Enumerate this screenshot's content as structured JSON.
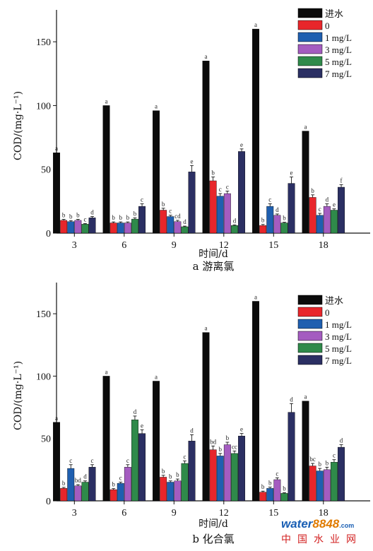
{
  "colors": {
    "进水": "#0b0b0b",
    "0": "#e8262b",
    "1 mg/L": "#1f5fb0",
    "3 mg/L": "#a45cc0",
    "5 mg/L": "#2f8a4a",
    "7 mg/L": "#2b2f63"
  },
  "chart_data": [
    {
      "type": "bar",
      "title": "a 游离氯",
      "xlabel": "时间/d",
      "ylabel": "COD/(mg·L⁻¹)",
      "ylim": [
        0,
        175
      ],
      "yticks": [
        0,
        50,
        100,
        150
      ],
      "categories": [
        "3",
        "6",
        "9",
        "12",
        "15",
        "18"
      ],
      "legend_position": "top-right",
      "grid": false,
      "series": [
        {
          "name": "进水",
          "values": [
            63,
            100,
            96,
            135,
            160,
            80
          ],
          "errors": [
            0,
            0,
            0,
            0,
            0,
            0
          ],
          "letters": [
            "a",
            "a",
            "a",
            "a",
            "a",
            "a"
          ]
        },
        {
          "name": "0",
          "values": [
            10,
            8,
            18,
            41,
            6,
            28
          ],
          "errors": [
            0.8,
            0.8,
            1.5,
            3,
            0.8,
            2
          ],
          "letters": [
            "b",
            "b",
            "b",
            "b",
            "b",
            "b"
          ]
        },
        {
          "name": "1 mg/L",
          "values": [
            9,
            8,
            13,
            29,
            21,
            14
          ],
          "errors": [
            0.8,
            0.8,
            1,
            2,
            2,
            1.5
          ],
          "letters": [
            "b",
            "b",
            "c",
            "c",
            "c",
            "c"
          ]
        },
        {
          "name": "3 mg/L",
          "values": [
            10,
            8,
            9,
            31,
            14,
            21
          ],
          "errors": [
            0.8,
            0.8,
            1,
            2,
            1,
            2
          ],
          "letters": [
            "b",
            "b",
            "cd",
            "c",
            "d",
            "d"
          ]
        },
        {
          "name": "5 mg/L",
          "values": [
            7,
            11,
            5,
            6,
            8,
            18
          ],
          "errors": [
            0.5,
            1,
            0.5,
            0.5,
            0.5,
            1
          ],
          "letters": [
            "c",
            "b",
            "d",
            "d",
            "b",
            "e"
          ]
        },
        {
          "name": "7 mg/L",
          "values": [
            12,
            21,
            48,
            64,
            39,
            36
          ],
          "errors": [
            1,
            2,
            5,
            2,
            5,
            2
          ],
          "letters": [
            "d",
            "c",
            "e",
            "e",
            "e",
            "f"
          ]
        }
      ]
    },
    {
      "type": "bar",
      "title": "b 化合氯",
      "xlabel": "时间/d",
      "ylabel": "COD/(mg·L⁻¹)",
      "ylim": [
        0,
        175
      ],
      "yticks": [
        0,
        50,
        100,
        150
      ],
      "categories": [
        "3",
        "6",
        "9",
        "12",
        "15",
        "18"
      ],
      "legend_position": "top-right",
      "grid": false,
      "series": [
        {
          "name": "进水",
          "values": [
            63,
            100,
            96,
            135,
            160,
            80
          ],
          "errors": [
            0,
            0,
            0,
            0,
            0,
            0
          ],
          "letters": [
            "a",
            "a",
            "a",
            "a",
            "a",
            "a"
          ]
        },
        {
          "name": "0",
          "values": [
            10,
            9,
            19,
            41,
            7,
            28
          ],
          "errors": [
            0.8,
            0.8,
            1.5,
            3,
            0.8,
            2
          ],
          "letters": [
            "b",
            "b",
            "b",
            "bd",
            "b",
            "bc"
          ]
        },
        {
          "name": "1 mg/L",
          "values": [
            26,
            14,
            15,
            36,
            10,
            24
          ],
          "errors": [
            3,
            1,
            1,
            2,
            1,
            2
          ],
          "letters": [
            "c",
            "c",
            "b",
            "b",
            "b",
            "b"
          ]
        },
        {
          "name": "3 mg/L",
          "values": [
            12,
            27,
            16,
            45,
            17,
            25
          ],
          "errors": [
            1,
            2,
            1.5,
            2,
            1.5,
            2
          ],
          "letters": [
            "bd",
            "c",
            "b",
            "b",
            "c",
            "b"
          ]
        },
        {
          "name": "5 mg/L",
          "values": [
            15,
            65,
            30,
            38,
            6,
            31
          ],
          "errors": [
            1,
            3,
            2,
            2,
            0.5,
            2
          ],
          "letters": [
            "d",
            "d",
            "c",
            "cc",
            "b",
            "c"
          ]
        },
        {
          "name": "7 mg/L",
          "values": [
            27,
            54,
            48,
            52,
            71,
            43
          ],
          "errors": [
            2,
            3,
            5,
            2,
            7,
            2
          ],
          "letters": [
            "c",
            "e",
            "d",
            "e",
            "d",
            "d"
          ]
        }
      ]
    }
  ],
  "watermark": {
    "brand_text": "water",
    "brand_number": "8848",
    "brand_domain": ".com",
    "brand_subtitle": "中国水业网"
  }
}
